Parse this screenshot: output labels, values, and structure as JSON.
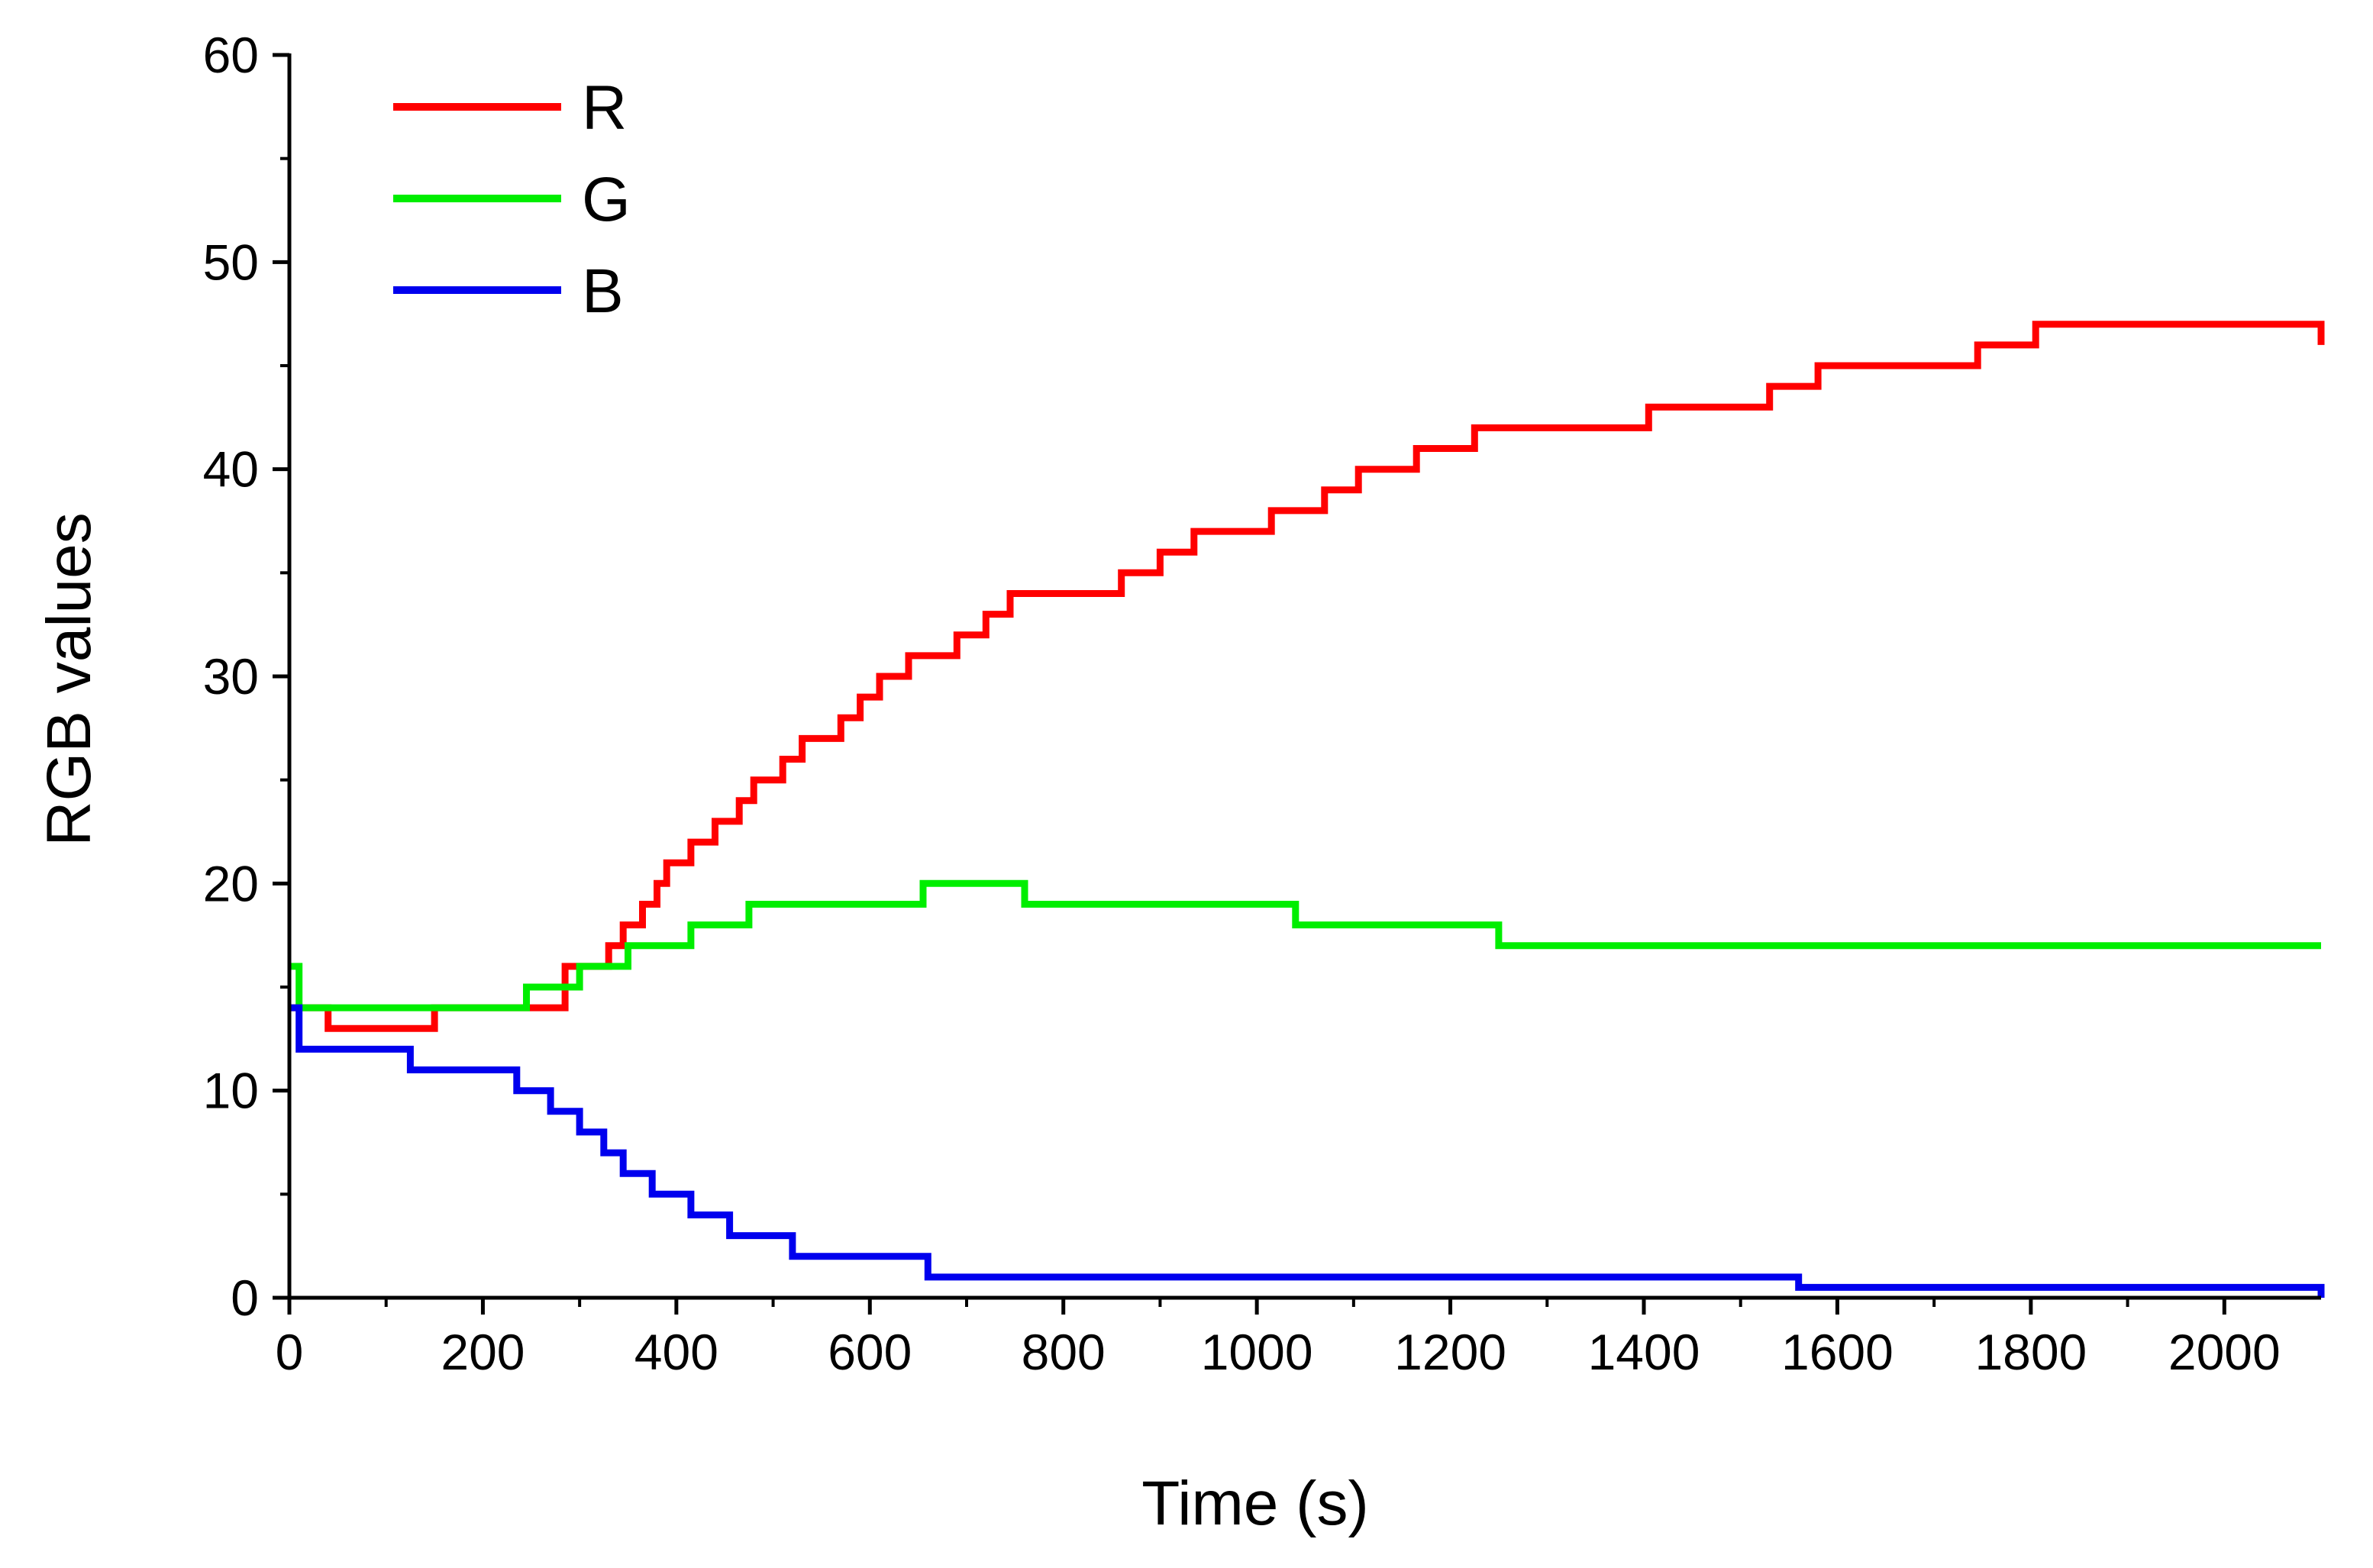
{
  "chart_data": {
    "type": "line",
    "title": "",
    "xlabel": "Time (s)",
    "ylabel": "RGB values",
    "xlim": [
      0,
      2100
    ],
    "ylim": [
      0,
      60
    ],
    "x_ticks": [
      0,
      200,
      400,
      600,
      800,
      1000,
      1200,
      1400,
      1600,
      1800,
      2000
    ],
    "y_ticks": [
      0,
      10,
      20,
      30,
      40,
      50,
      60
    ],
    "grid": false,
    "legend_position": "top-left",
    "step": true,
    "series": [
      {
        "name": "R",
        "color": "#ff0000",
        "points": [
          [
            0,
            14
          ],
          [
            40,
            13
          ],
          [
            110,
            13
          ],
          [
            150,
            14
          ],
          [
            285,
            16
          ],
          [
            300,
            16
          ],
          [
            330,
            17
          ],
          [
            345,
            18
          ],
          [
            365,
            19
          ],
          [
            380,
            20
          ],
          [
            390,
            21
          ],
          [
            415,
            22
          ],
          [
            440,
            23
          ],
          [
            465,
            24
          ],
          [
            480,
            25
          ],
          [
            510,
            26
          ],
          [
            530,
            27
          ],
          [
            570,
            28
          ],
          [
            590,
            29
          ],
          [
            610,
            30
          ],
          [
            640,
            31
          ],
          [
            690,
            32
          ],
          [
            720,
            33
          ],
          [
            745,
            34
          ],
          [
            805,
            34
          ],
          [
            860,
            35
          ],
          [
            900,
            36
          ],
          [
            935,
            37
          ],
          [
            1015,
            38
          ],
          [
            1070,
            39
          ],
          [
            1105,
            40
          ],
          [
            1165,
            41
          ],
          [
            1225,
            42
          ],
          [
            1345,
            42
          ],
          [
            1405,
            43
          ],
          [
            1530,
            44
          ],
          [
            1580,
            45
          ],
          [
            1745,
            46
          ],
          [
            1805,
            47
          ],
          [
            2100,
            46
          ]
        ]
      },
      {
        "name": "G",
        "color": "#00ee00",
        "points": [
          [
            0,
            16
          ],
          [
            10,
            14
          ],
          [
            160,
            14
          ],
          [
            245,
            15
          ],
          [
            300,
            16
          ],
          [
            350,
            17
          ],
          [
            415,
            18
          ],
          [
            475,
            19
          ],
          [
            655,
            20
          ],
          [
            760,
            19
          ],
          [
            1040,
            18
          ],
          [
            1140,
            18
          ],
          [
            1250,
            17
          ],
          [
            1340,
            17
          ],
          [
            2100,
            17
          ]
        ]
      },
      {
        "name": "B",
        "color": "#0000ee",
        "points": [
          [
            0,
            14
          ],
          [
            10,
            12
          ],
          [
            110,
            12
          ],
          [
            125,
            11
          ],
          [
            220,
            11
          ],
          [
            235,
            10
          ],
          [
            270,
            9
          ],
          [
            300,
            8
          ],
          [
            325,
            7
          ],
          [
            345,
            6
          ],
          [
            375,
            5
          ],
          [
            415,
            4
          ],
          [
            455,
            3
          ],
          [
            520,
            2
          ],
          [
            590,
            2
          ],
          [
            660,
            1
          ],
          [
            1460,
            1
          ],
          [
            1560,
            0.5
          ],
          [
            1820,
            0.5
          ],
          [
            2100,
            0
          ]
        ]
      }
    ]
  }
}
